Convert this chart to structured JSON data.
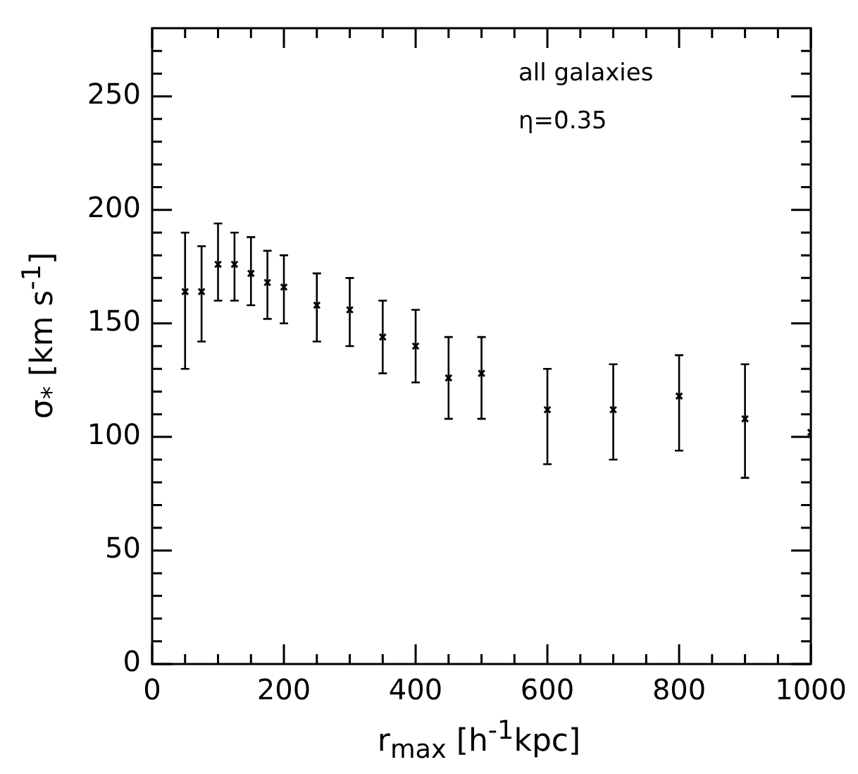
{
  "chart_data": {
    "type": "scatter",
    "xlabel": "r$_{max}$ [h$^{-1}$kpc]",
    "ylabel": "σ$_{*}$ [km s$^{-1}$]",
    "annotations": [
      "all galaxies",
      "η=0.35"
    ],
    "x": [
      50,
      75,
      100,
      125,
      150,
      175,
      200,
      250,
      300,
      350,
      400,
      450,
      500,
      600,
      700,
      800,
      900,
      1000
    ],
    "values": [
      164,
      164,
      176,
      176,
      172,
      168,
      166,
      158,
      156,
      144,
      140,
      126,
      128,
      112,
      112,
      118,
      108,
      102
    ],
    "errors": [
      [
        130,
        190
      ],
      [
        142,
        184
      ],
      [
        160,
        194
      ],
      [
        160,
        190
      ],
      [
        158,
        188
      ],
      [
        152,
        182
      ],
      [
        150,
        180
      ],
      [
        142,
        172
      ],
      [
        140,
        170
      ],
      [
        128,
        160
      ],
      [
        124,
        156
      ],
      [
        108,
        144
      ],
      [
        108,
        144
      ],
      [
        88,
        130
      ],
      [
        90,
        132
      ],
      [
        94,
        136
      ],
      [
        82,
        132
      ],
      null
    ],
    "color": "#000000",
    "marker": "cross",
    "grid": false,
    "legend": false,
    "xlim": [
      0,
      1000
    ],
    "ylim": [
      0,
      280
    ],
    "xticks": [
      0,
      {
        "value": 50,
        "label": null
      },
      {
        "value": 100,
        "label": null
      },
      {
        "value": 150,
        "label": null
      },
      200,
      {
        "value": 250,
        "label": null
      },
      {
        "value": 300,
        "label": null
      },
      {
        "value": 350,
        "label": null
      },
      400,
      {
        "value": 450,
        "label": null
      },
      {
        "value": 500,
        "label": null
      },
      {
        "value": 550,
        "label": null
      },
      600,
      {
        "value": 650,
        "label": null
      },
      {
        "value": 700,
        "label": null
      },
      {
        "value": 750,
        "label": null
      },
      800,
      {
        "value": 850,
        "label": null
      },
      {
        "value": 900,
        "label": null
      },
      {
        "value": 950,
        "label": null
      },
      1000
    ],
    "yticks": [
      0,
      {
        "value": 10,
        "label": null
      },
      {
        "value": 20,
        "label": null
      },
      {
        "value": 30,
        "label": null
      },
      {
        "value": 40,
        "label": null
      },
      50,
      {
        "value": 60,
        "label": null
      },
      {
        "value": 70,
        "label": null
      },
      {
        "value": 80,
        "label": null
      },
      {
        "value": 90,
        "label": null
      },
      100,
      {
        "value": 110,
        "label": null
      },
      {
        "value": 120,
        "label": null
      },
      {
        "value": 130,
        "label": null
      },
      {
        "value": 140,
        "label": null
      },
      150,
      {
        "value": 160,
        "label": null
      },
      {
        "value": 170,
        "label": null
      },
      {
        "value": 180,
        "label": null
      },
      {
        "value": 190,
        "label": null
      },
      200,
      {
        "value": 210,
        "label": null
      },
      {
        "value": 220,
        "label": null
      },
      {
        "value": 230,
        "label": null
      },
      {
        "value": 240,
        "label": null
      },
      250,
      {
        "value": 260,
        "label": null
      },
      {
        "value": 270,
        "label": null
      }
    ]
  }
}
